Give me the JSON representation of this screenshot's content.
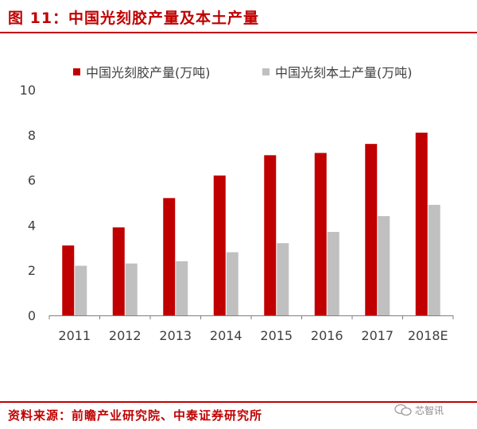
{
  "figure": {
    "title": "图 11：中国光刻胶产量及本土产量",
    "source": "资料来源：前瞻产业研究院、中泰证券研究所",
    "watermark": "芯智讯"
  },
  "colors": {
    "accent": "#c00000",
    "series_total": "#c00000",
    "series_local": "#c0c0c0",
    "axis_text": "#404040"
  },
  "chart_data": {
    "type": "bar",
    "categories": [
      "2011",
      "2012",
      "2013",
      "2014",
      "2015",
      "2016",
      "2017",
      "2018E"
    ],
    "series": [
      {
        "name": "中国光刻胶产量(万吨)",
        "values": [
          3.1,
          3.9,
          5.2,
          6.2,
          7.1,
          7.2,
          7.6,
          8.1
        ]
      },
      {
        "name": "中国光刻本土产量(万吨)",
        "values": [
          2.2,
          2.3,
          2.4,
          2.8,
          3.2,
          3.7,
          4.4,
          4.9
        ]
      }
    ],
    "ylim": [
      0,
      10
    ],
    "yticks": [
      0,
      2,
      4,
      6,
      8,
      10
    ],
    "legend_position": "top",
    "grid": false,
    "xlabel": "",
    "ylabel": ""
  }
}
